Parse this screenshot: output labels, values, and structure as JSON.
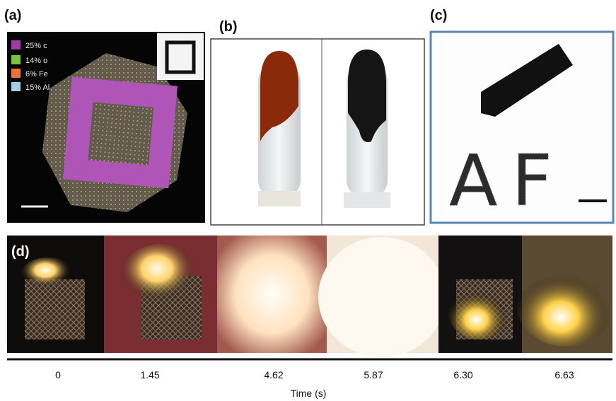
{
  "panels": [
    {
      "label": "(a)",
      "legend": [
        "25% c",
        "14% o",
        "6% Fe",
        "15% Al"
      ]
    },
    {
      "label": "(b)"
    },
    {
      "label": "(c)",
      "handwriting": "AF"
    },
    {
      "label": "(d)",
      "times": [
        "0",
        "1.45",
        "4.62",
        "5.87",
        "6.30",
        "6.63"
      ],
      "axis_label": "Time (s)"
    }
  ]
}
